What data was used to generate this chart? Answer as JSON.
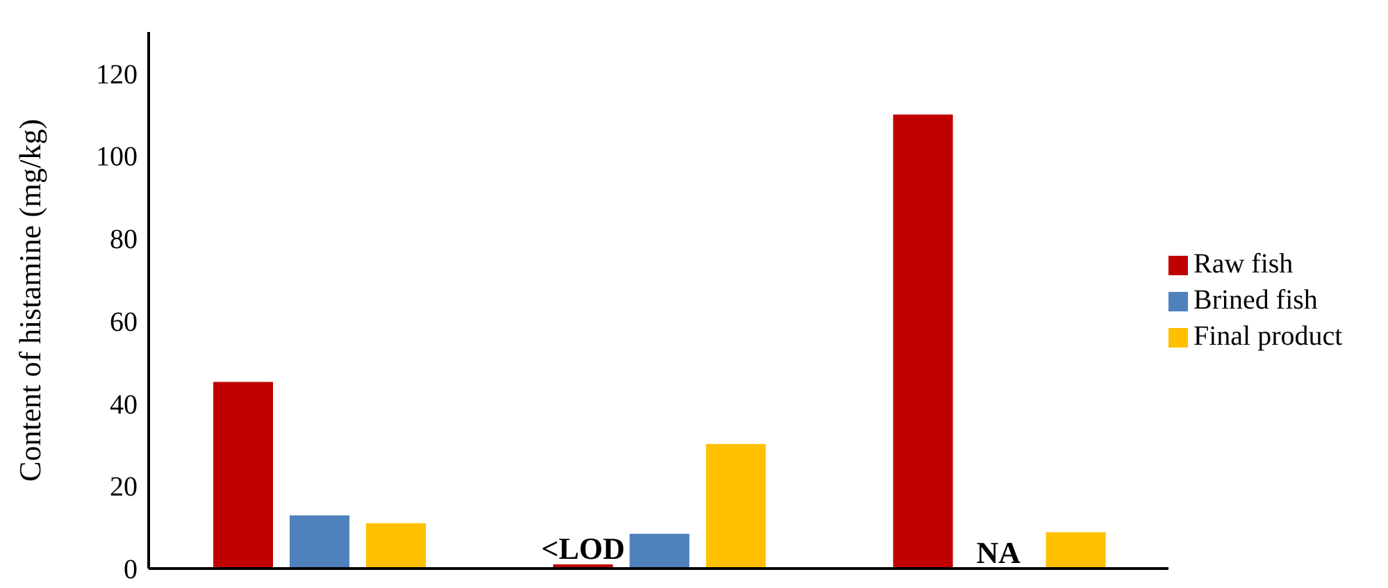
{
  "chart_data": {
    "type": "bar",
    "ylabel": "Content of histamine (mg/kg)",
    "categories": [
      null,
      null,
      null
    ],
    "series": [
      {
        "name": "Raw fish",
        "color": "#c00000",
        "values": [
          45.2,
          1,
          110
        ],
        "value_labels": [
          null,
          "<LOD",
          null
        ]
      },
      {
        "name": "Brined fish",
        "color": "#4f81bd",
        "values": [
          12.9,
          8.4,
          null
        ],
        "value_labels": [
          null,
          null,
          "NA"
        ]
      },
      {
        "name": "Final product",
        "color": "#ffc000",
        "values": [
          11,
          30.2,
          8.8
        ]
      }
    ],
    "ylim": [
      0,
      130
    ],
    "yticks": [
      0,
      20,
      40,
      60,
      80,
      100,
      120
    ],
    "grid": false,
    "legend": "right"
  }
}
